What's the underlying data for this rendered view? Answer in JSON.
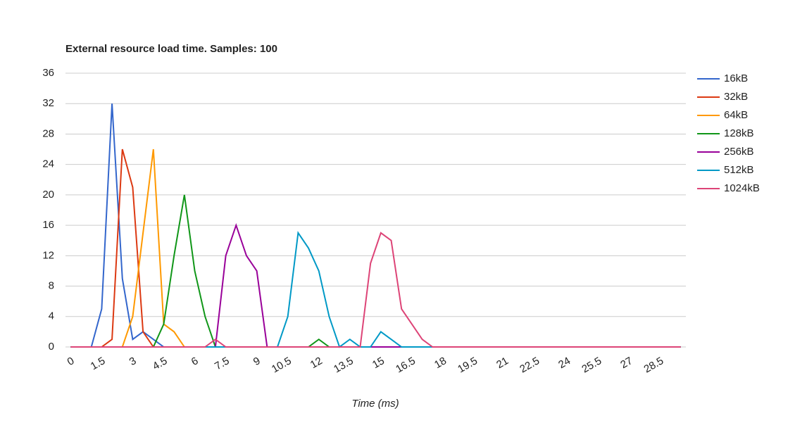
{
  "chart_data": {
    "type": "line",
    "title": "External resource load time. Samples: 100",
    "x_label": "Time (ms)",
    "x": [
      0,
      0.5,
      1,
      1.5,
      2,
      2.5,
      3,
      3.5,
      4,
      4.5,
      5,
      5.5,
      6,
      6.5,
      7,
      7.5,
      8,
      8.5,
      9,
      9.5,
      10,
      10.5,
      11,
      11.5,
      12,
      12.5,
      13,
      13.5,
      14,
      14.5,
      15,
      15.5,
      16,
      16.5,
      17,
      17.5,
      18,
      18.5,
      19,
      19.5,
      20,
      20.5,
      21,
      21.5,
      22,
      22.5,
      23,
      23.5,
      24,
      24.5,
      25,
      25.5,
      26,
      26.5,
      27,
      27.5,
      28,
      28.5,
      29,
      29.5
    ],
    "series": [
      {
        "name": "16kB",
        "color": "#3366cc",
        "values": [
          0,
          0,
          0,
          5,
          32,
          9,
          1,
          2,
          1,
          0,
          0,
          0,
          0,
          0,
          0,
          0,
          0,
          0,
          0,
          0,
          0,
          0,
          0,
          0,
          0,
          0,
          0,
          0,
          0,
          0,
          0,
          0,
          0,
          0,
          0,
          0,
          0,
          0,
          0,
          0,
          0,
          0,
          0,
          0,
          0,
          0,
          0,
          0,
          0,
          0,
          0,
          0,
          0,
          0,
          0,
          0,
          0,
          0,
          0,
          0
        ]
      },
      {
        "name": "32kB",
        "color": "#dc3912",
        "values": [
          0,
          0,
          0,
          0,
          1,
          26,
          21,
          2,
          0,
          0,
          0,
          0,
          0,
          0,
          0,
          0,
          0,
          0,
          0,
          0,
          0,
          0,
          0,
          0,
          0,
          0,
          0,
          0,
          0,
          0,
          0,
          0,
          0,
          0,
          0,
          0,
          0,
          0,
          0,
          0,
          0,
          0,
          0,
          0,
          0,
          0,
          0,
          0,
          0,
          0,
          0,
          0,
          0,
          0,
          0,
          0,
          0,
          0,
          0,
          0
        ]
      },
      {
        "name": "64kB",
        "color": "#ff9900",
        "values": [
          0,
          0,
          0,
          0,
          0,
          0,
          4,
          15,
          26,
          3,
          2,
          0,
          0,
          0,
          0,
          0,
          0,
          0,
          0,
          0,
          0,
          0,
          0,
          0,
          0,
          0,
          0,
          0,
          0,
          0,
          0,
          0,
          0,
          0,
          0,
          0,
          0,
          0,
          0,
          0,
          0,
          0,
          0,
          0,
          0,
          0,
          0,
          0,
          0,
          0,
          0,
          0,
          0,
          0,
          0,
          0,
          0,
          0,
          0,
          0
        ]
      },
      {
        "name": "128kB",
        "color": "#109618",
        "values": [
          0,
          0,
          0,
          0,
          0,
          0,
          0,
          0,
          0,
          3,
          12,
          20,
          10,
          4,
          0,
          0,
          0,
          0,
          0,
          0,
          0,
          0,
          0,
          0,
          1,
          0,
          0,
          0,
          0,
          0,
          0,
          0,
          0,
          0,
          0,
          0,
          0,
          0,
          0,
          0,
          0,
          0,
          0,
          0,
          0,
          0,
          0,
          0,
          0,
          0,
          0,
          0,
          0,
          0,
          0,
          0,
          0,
          0,
          0,
          0
        ]
      },
      {
        "name": "256kB",
        "color": "#990099",
        "values": [
          0,
          0,
          0,
          0,
          0,
          0,
          0,
          0,
          0,
          0,
          0,
          0,
          0,
          0,
          0,
          12,
          16,
          12,
          10,
          0,
          0,
          0,
          0,
          0,
          0,
          0,
          0,
          0,
          0,
          0,
          0,
          0,
          0,
          0,
          0,
          0,
          0,
          0,
          0,
          0,
          0,
          0,
          0,
          0,
          0,
          0,
          0,
          0,
          0,
          0,
          0,
          0,
          0,
          0,
          0,
          0,
          0,
          0,
          0,
          0
        ]
      },
      {
        "name": "512kB",
        "color": "#0099c6",
        "values": [
          0,
          0,
          0,
          0,
          0,
          0,
          0,
          0,
          0,
          0,
          0,
          0,
          0,
          0,
          0,
          0,
          0,
          0,
          0,
          0,
          0,
          4,
          15,
          13,
          10,
          4,
          0,
          1,
          0,
          0,
          2,
          1,
          0,
          0,
          0,
          0,
          0,
          0,
          0,
          0,
          0,
          0,
          0,
          0,
          0,
          0,
          0,
          0,
          0,
          0,
          0,
          0,
          0,
          0,
          0,
          0,
          0,
          0,
          0,
          0
        ]
      },
      {
        "name": "1024kB",
        "color": "#dd4477",
        "values": [
          0,
          0,
          0,
          0,
          0,
          0,
          0,
          0,
          0,
          0,
          0,
          0,
          0,
          0,
          1,
          0,
          0,
          0,
          0,
          0,
          0,
          0,
          0,
          0,
          0,
          0,
          0,
          0,
          0,
          11,
          15,
          14,
          5,
          3,
          1,
          0,
          0,
          0,
          0,
          0,
          0,
          0,
          0,
          0,
          0,
          0,
          0,
          0,
          0,
          0,
          0,
          0,
          0,
          0,
          0,
          0,
          0,
          0,
          0,
          0
        ]
      }
    ],
    "xlim": [
      -0.25,
      29.75
    ],
    "xticks": [
      0,
      1.5,
      3,
      4.5,
      6,
      7.5,
      9,
      10.5,
      12,
      13.5,
      15,
      16.5,
      18,
      19.5,
      21,
      22.5,
      24,
      25.5,
      27,
      28.5
    ],
    "ylim": [
      0,
      36
    ],
    "yticks": [
      0,
      4,
      8,
      12,
      16,
      20,
      24,
      28,
      32,
      36
    ],
    "grid": true,
    "legend": "right"
  }
}
